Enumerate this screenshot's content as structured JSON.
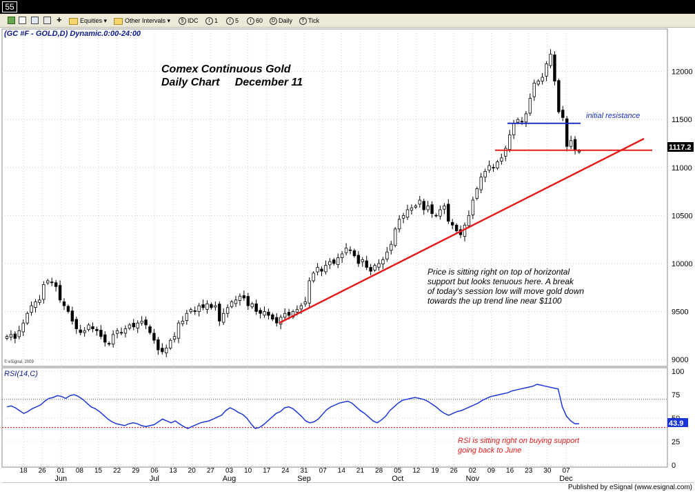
{
  "window": {
    "number": "55"
  },
  "toolbar": {
    "items": [
      {
        "label": "Equities",
        "icon": "folder-icon",
        "dropdown": true
      },
      {
        "label": "Other Intervals",
        "icon": "folder-icon",
        "dropdown": true
      },
      {
        "label": "IDC",
        "icon": "interval-icon"
      },
      {
        "label": "1",
        "icon": "interval-icon"
      },
      {
        "label": "5",
        "icon": "interval-icon"
      },
      {
        "label": "60",
        "icon": "interval-icon"
      },
      {
        "label": "Daily",
        "icon": "interval-icon"
      },
      {
        "label": "Tick",
        "icon": "interval-icon"
      }
    ]
  },
  "chart_data": [
    {
      "type": "candlestick",
      "header": "(GC #F - GOLD,D) Dynamic.0:00-24:00",
      "title": "Comex Continuous Gold",
      "subtitle": "Daily Chart     December 11",
      "copyright": "© eSignal, 2009",
      "last_price_label": "1117.2",
      "yticks": [
        9000,
        9500,
        10000,
        10500,
        11000,
        11500,
        12000
      ],
      "ylim": [
        8950,
        12400
      ],
      "close_series": [
        9240,
        9260,
        9220,
        9300,
        9380,
        9480,
        9560,
        9600,
        9620,
        9780,
        9820,
        9800,
        9760,
        9620,
        9560,
        9500,
        9400,
        9320,
        9280,
        9300,
        9360,
        9320,
        9300,
        9240,
        9180,
        9160,
        9260,
        9300,
        9280,
        9320,
        9360,
        9340,
        9380,
        9400,
        9360,
        9280,
        9200,
        9100,
        9080,
        9120,
        9200,
        9240,
        9380,
        9400,
        9480,
        9520,
        9500,
        9560,
        9540,
        9580,
        9540,
        9560,
        9400,
        9480,
        9540,
        9600,
        9620,
        9660,
        9640,
        9560,
        9580,
        9500,
        9480,
        9500,
        9460,
        9420,
        9380,
        9440,
        9480,
        9460,
        9500,
        9520,
        9560,
        9600,
        9820,
        9900,
        9960,
        9920,
        9980,
        10020,
        10000,
        10060,
        10100,
        10160,
        10140,
        10080,
        10000,
        10040,
        9960,
        9920,
        9980,
        10000,
        10040,
        10120,
        10200,
        10360,
        10460,
        10500,
        10560,
        10580,
        10600,
        10660,
        10560,
        10600,
        10520,
        10500,
        10560,
        10600,
        10440,
        10400,
        10340,
        10300,
        10400,
        10500,
        10660,
        10780,
        10900,
        10960,
        11020,
        11000,
        11060,
        11100,
        11200,
        11340,
        11460,
        11500,
        11480,
        11560,
        11720,
        11880,
        11900,
        11940,
        12080,
        12180,
        11900,
        11580,
        11520,
        11220,
        11280,
        11180,
        11172
      ],
      "support_level": 11180,
      "initial_resistance_level": 11460,
      "trendline": {
        "start_price": 9380,
        "end_price": 11300
      },
      "x_tick_labels": [
        "18",
        "26",
        "01",
        "08",
        "15",
        "22",
        "29",
        "06",
        "13",
        "20",
        "27",
        "03",
        "10",
        "17",
        "24",
        "31",
        "07",
        "14",
        "21",
        "28",
        "05",
        "12",
        "19",
        "26",
        "02",
        "09",
        "16",
        "23",
        "30",
        "07"
      ],
      "month_labels": [
        "Jun",
        "Jul",
        "Aug",
        "Sep",
        "Oct",
        "Nov",
        "Dec"
      ],
      "annotations": {
        "initial_resistance": "initial resistance",
        "note_line1": "Price is sitting right on top of horizontal",
        "note_line2": "support but looks tenuous here. A break",
        "note_line3": "of today's session low will move gold down",
        "note_line4": "towards the up trend line near $1100"
      }
    },
    {
      "type": "line",
      "header": "RSI(14,C)",
      "last_value_label": "43.9",
      "yticks": [
        0,
        25,
        50,
        75,
        100
      ],
      "ylim": [
        0,
        100
      ],
      "overbought": 70,
      "oversold": 40,
      "values": [
        62,
        63,
        61,
        58,
        55,
        57,
        60,
        62,
        64,
        68,
        71,
        72,
        74,
        73,
        71,
        74,
        75,
        73,
        70,
        66,
        62,
        60,
        57,
        53,
        49,
        46,
        44,
        43,
        42,
        44,
        45,
        44,
        42,
        41,
        42,
        43,
        46,
        49,
        47,
        45,
        47,
        44,
        41,
        39,
        41,
        43,
        45,
        46,
        47,
        49,
        51,
        53,
        58,
        61,
        59,
        56,
        54,
        50,
        44,
        39,
        40,
        43,
        47,
        51,
        55,
        57,
        61,
        62,
        60,
        56,
        52,
        47,
        45,
        46,
        49,
        54,
        59,
        62,
        64,
        66,
        67,
        68,
        66,
        62,
        58,
        55,
        51,
        47,
        45,
        48,
        52,
        58,
        62,
        66,
        69,
        70,
        71,
        72,
        71,
        70,
        68,
        65,
        62,
        58,
        55,
        53,
        55,
        57,
        58,
        60,
        62,
        64,
        66,
        69,
        71,
        73,
        74,
        75,
        76,
        77,
        79,
        80,
        81,
        82,
        83,
        84,
        86,
        85,
        84,
        83,
        82,
        81,
        62,
        52,
        47,
        44,
        43.9
      ],
      "annotations": {
        "note_line1": "RSI is sitting right on buying support",
        "note_line2": "going back to June"
      }
    }
  ],
  "footer": {
    "text": "Published by eSignal (www.esignal.com)"
  }
}
